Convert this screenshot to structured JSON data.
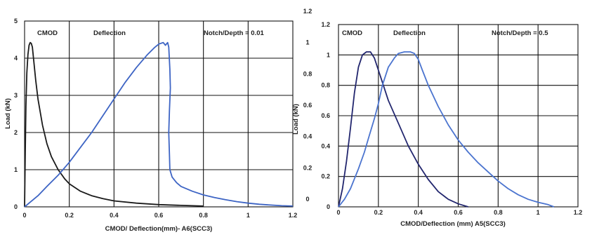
{
  "chart_data": [
    {
      "type": "line",
      "xlabel": "CMOD/ Deflection(mm)- A6(SCC3)",
      "ylabel": "Load (kN)",
      "xlim": [
        0,
        1.2
      ],
      "ylim": [
        0,
        5
      ],
      "xticks": [
        "0",
        "0.2",
        "0.4",
        "0.6",
        "0.8",
        "1",
        "1.2"
      ],
      "yticks": [
        "0",
        "1",
        "2",
        "3",
        "4",
        "5"
      ],
      "grid": true,
      "annotations": [
        "CMOD",
        "Deflection",
        "Notch/Depth = 0.01"
      ],
      "series": [
        {
          "color": "#1a1a1a",
          "x": [
            0,
            0.003,
            0.006,
            0.01,
            0.015,
            0.02,
            0.025,
            0.03,
            0.035,
            0.04,
            0.05,
            0.06,
            0.08,
            0.1,
            0.12,
            0.15,
            0.18,
            0.2,
            0.25,
            0.3,
            0.35,
            0.4,
            0.5,
            0.6,
            0.7,
            0.8
          ],
          "y": [
            0,
            1.5,
            2.7,
            3.6,
            4.1,
            4.35,
            4.42,
            4.4,
            4.3,
            4.0,
            3.4,
            2.9,
            2.2,
            1.7,
            1.35,
            1.0,
            0.75,
            0.62,
            0.42,
            0.3,
            0.22,
            0.16,
            0.1,
            0.06,
            0.04,
            0.02
          ]
        },
        {
          "color": "#3d64c4",
          "x": [
            0,
            0.03,
            0.06,
            0.1,
            0.15,
            0.2,
            0.25,
            0.3,
            0.35,
            0.4,
            0.45,
            0.5,
            0.55,
            0.58,
            0.6,
            0.62,
            0.63,
            0.64,
            0.645,
            0.65,
            0.652,
            0.648,
            0.645,
            0.648,
            0.65,
            0.66,
            0.68,
            0.7,
            0.75,
            0.8,
            0.85,
            0.9,
            0.95,
            1.0,
            1.05,
            1.1,
            1.15,
            1.2
          ],
          "y": [
            0,
            0.15,
            0.3,
            0.55,
            0.85,
            1.2,
            1.6,
            2.0,
            2.45,
            2.9,
            3.35,
            3.75,
            4.1,
            4.28,
            4.38,
            4.42,
            4.35,
            4.42,
            4.3,
            3.7,
            3.2,
            2.6,
            2.0,
            1.4,
            1.0,
            0.8,
            0.65,
            0.55,
            0.42,
            0.32,
            0.25,
            0.19,
            0.14,
            0.1,
            0.07,
            0.05,
            0.03,
            0.02
          ]
        }
      ]
    },
    {
      "type": "line",
      "xlabel": "CMOD/Deflection (mm) A5(SCC3)",
      "ylabel": "Load (kN)",
      "xlim": [
        0,
        1.2
      ],
      "ylim": [
        0,
        1.2
      ],
      "xticks": [
        "0",
        "0.2",
        "0.4",
        "0.6",
        "0.8",
        "1",
        "1.2"
      ],
      "yticks": [
        "0",
        "0.2",
        "0.4",
        "0.6",
        "0.8",
        "1",
        "1.2"
      ],
      "grid": true,
      "annotations": [
        "CMOD",
        "Deflection",
        "Notch/Depth = 0.5"
      ],
      "series": [
        {
          "color": "#22266e",
          "x": [
            0,
            0.02,
            0.04,
            0.06,
            0.08,
            0.1,
            0.12,
            0.14,
            0.16,
            0.18,
            0.2,
            0.22,
            0.25,
            0.3,
            0.35,
            0.4,
            0.45,
            0.5,
            0.55,
            0.6,
            0.65
          ],
          "y": [
            0,
            0.12,
            0.3,
            0.52,
            0.75,
            0.92,
            1.0,
            1.02,
            1.02,
            0.98,
            0.9,
            0.82,
            0.7,
            0.55,
            0.4,
            0.28,
            0.18,
            0.1,
            0.05,
            0.02,
            0.0
          ]
        },
        {
          "color": "#4b74cf",
          "x": [
            0,
            0.03,
            0.06,
            0.1,
            0.13,
            0.15,
            0.18,
            0.2,
            0.22,
            0.25,
            0.28,
            0.3,
            0.33,
            0.36,
            0.38,
            0.4,
            0.42,
            0.45,
            0.5,
            0.55,
            0.6,
            0.65,
            0.7,
            0.75,
            0.8,
            0.85,
            0.9,
            0.95,
            1.0,
            1.05,
            1.08
          ],
          "y": [
            0,
            0.05,
            0.12,
            0.25,
            0.36,
            0.45,
            0.58,
            0.68,
            0.8,
            0.92,
            0.98,
            1.01,
            1.02,
            1.02,
            1.01,
            0.97,
            0.9,
            0.8,
            0.66,
            0.54,
            0.44,
            0.36,
            0.29,
            0.23,
            0.17,
            0.12,
            0.08,
            0.05,
            0.03,
            0.015,
            0.0
          ]
        }
      ]
    }
  ]
}
